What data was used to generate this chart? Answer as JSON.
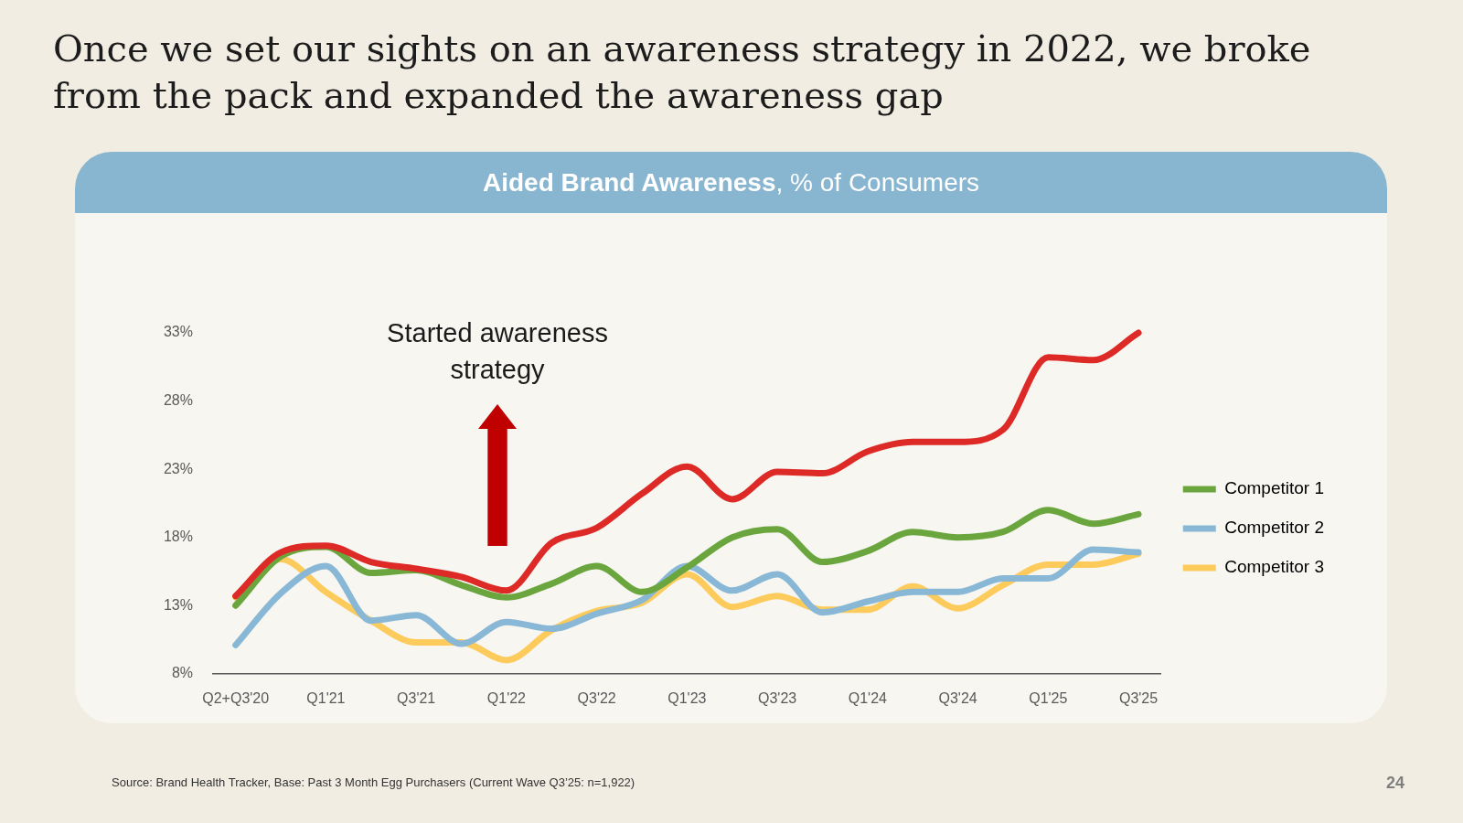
{
  "chart_data": {
    "type": "line",
    "title": "Once we set our sights on an awareness strategy in 2022, we broke from the pack and expanded the awareness gap",
    "subtitle": "Aided Brand Awareness, % of Consumers",
    "categories": [
      "Q2+Q3'20",
      null,
      "Q1'21",
      null,
      "Q3'21",
      null,
      "Q1'22",
      null,
      "Q3'22",
      null,
      "Q1'23",
      null,
      "Q3'23",
      null,
      "Q1'24",
      null,
      "Q3'24",
      null,
      "Q1'25",
      null,
      "Q3'25"
    ],
    "series": [
      {
        "color": "#dd2a27",
        "values": [
          13.7,
          16.9,
          17.4,
          16.2,
          15.7,
          15.1,
          14.1,
          17.6,
          18.7,
          21.2,
          23.2,
          20.8,
          22.8,
          22.7,
          24.3,
          25.0,
          25.0,
          25.9,
          31.2,
          31.0,
          33.0
        ]
      },
      {
        "name": "Competitor 1",
        "color": "#6aa63d",
        "values": [
          13.0,
          16.6,
          17.3,
          15.4,
          15.6,
          14.5,
          13.6,
          14.6,
          15.9,
          14.0,
          15.8,
          18.0,
          18.6,
          16.2,
          17.0,
          18.4,
          18.0,
          18.4,
          20.0,
          19.0,
          19.7
        ]
      },
      {
        "name": "Competitor 2",
        "color": "#88b8d6",
        "values": [
          10.1,
          13.9,
          15.9,
          11.9,
          12.3,
          10.2,
          11.8,
          11.3,
          12.4,
          13.4,
          15.9,
          14.1,
          15.3,
          12.5,
          13.3,
          14.0,
          14.0,
          15.0,
          15.0,
          17.1,
          16.9
        ]
      },
      {
        "name": "Competitor 3",
        "color": "#fccb5c",
        "values": [
          13.6,
          16.4,
          14.0,
          11.9,
          10.3,
          10.3,
          9.0,
          11.2,
          12.6,
          13.2,
          15.3,
          12.9,
          13.7,
          12.7,
          12.7,
          14.4,
          12.8,
          14.5,
          16.0,
          16.0,
          16.8
        ]
      }
    ],
    "ylim": [
      8,
      33
    ],
    "yticks": [
      {
        "value": 8,
        "label": "8%"
      },
      {
        "value": 13,
        "label": "13%"
      },
      {
        "value": 18,
        "label": "18%"
      },
      {
        "value": 23,
        "label": "23%"
      },
      {
        "value": 28,
        "label": "28%"
      },
      {
        "value": 33,
        "label": "33%"
      }
    ],
    "legend": "right",
    "marker": "none",
    "line_style": "solid",
    "annotations": [
      "Started awareness strategy",
      "Source: Brand Health Tracker, Base: Past 3 Month Egg Purchasers (Current Wave Q3’25: n=1,922)",
      "24"
    ]
  }
}
